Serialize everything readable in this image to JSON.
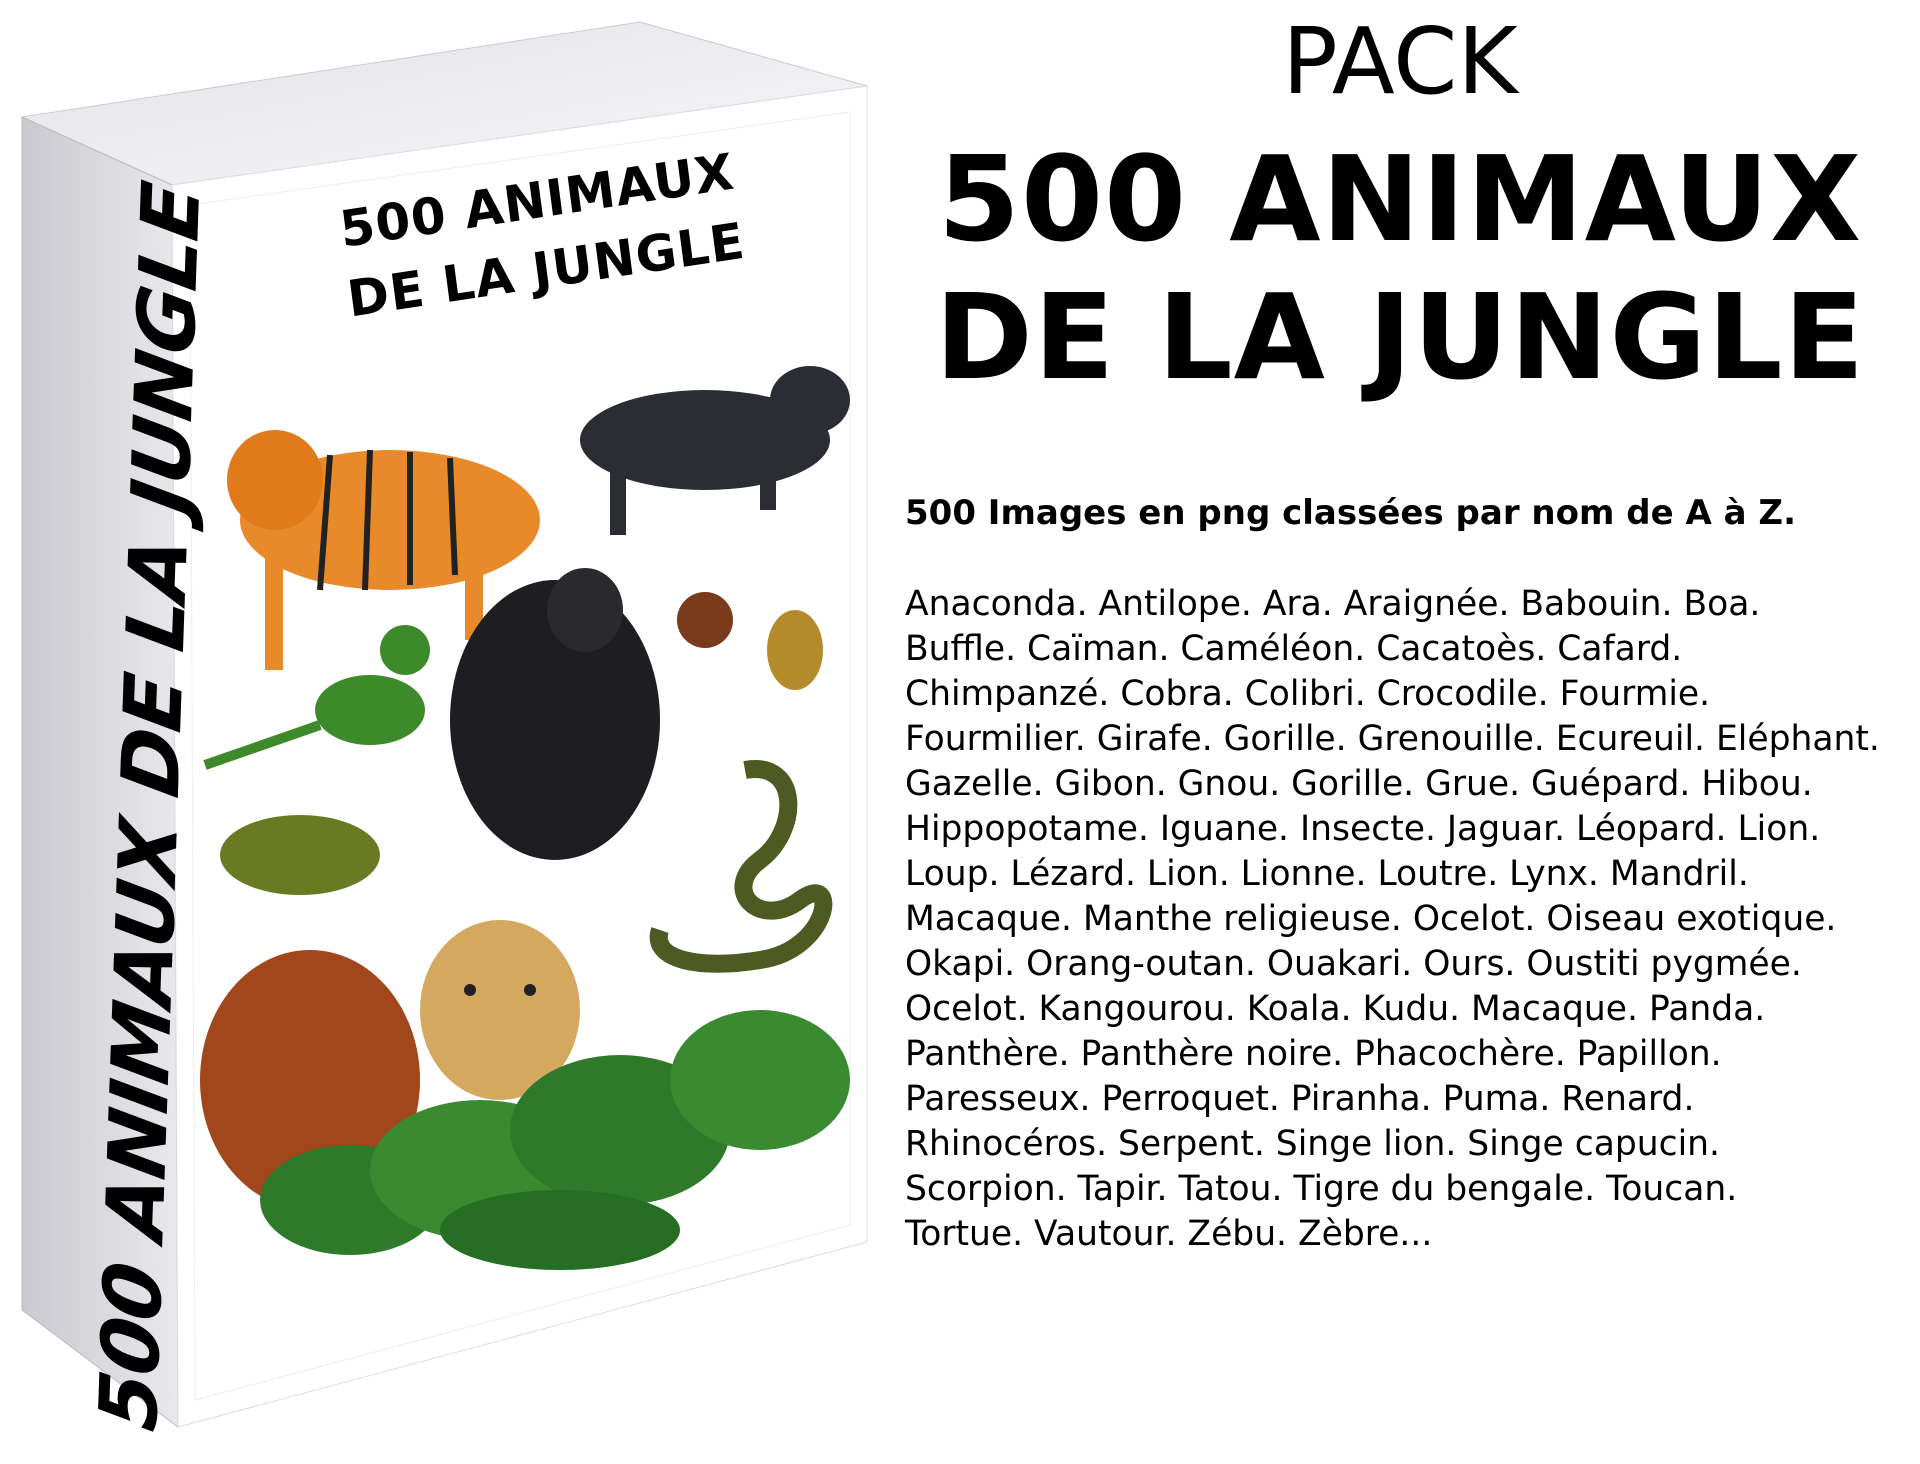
{
  "box": {
    "cover_title_line1": "500 ANIMAUX",
    "cover_title_line2": "DE LA JUNGLE",
    "spine_title": "500 ANIMAUX DE LA JUNGLE",
    "colors": {
      "spine": "#d9d9dd",
      "top": "#eeeef0",
      "front": "#ffffff"
    }
  },
  "heading": {
    "pack": "PACK",
    "line1": "500 ANIMAUX",
    "line2": "DE LA JUNGLE"
  },
  "subtitle": "500 Images en png classées par nom de A à Z.",
  "animal_list": [
    "Anaconda. Antilope. Ara. Araignée. Babouin. Boa.",
    "Buffle. Caïman. Caméléon. Cacatoès. Cafard.",
    "Chimpanzé. Cobra. Colibri. Crocodile. Fourmie.",
    "Fourmilier. Girafe. Gorille. Grenouille. Ecureuil. Eléphant.",
    "Gazelle. Gibon. Gnou. Gorille. Grue. Guépard. Hibou.",
    "Hippopotame. Iguane. Insecte. Jaguar. Léopard. Lion.",
    "Loup. Lézard. Lion. Lionne. Loutre. Lynx. Mandril.",
    "Macaque. Manthe religieuse. Ocelot. Oiseau exotique.",
    "Okapi. Orang-outan. Ouakari. Ours. Oustiti pygmée.",
    "Ocelot. Kangourou. Koala. Kudu. Macaque. Panda.",
    "Panthère. Panthère noire. Phacochère. Papillon.",
    "Paresseux. Perroquet. Piranha. Puma. Renard.",
    "Rhinocéros. Serpent. Singe lion. Singe capucin.",
    "Scorpion. Tapir. Tatou. Tigre du bengale. Toucan.",
    "Tortue. Vautour. Zébu. Zèbre..."
  ]
}
